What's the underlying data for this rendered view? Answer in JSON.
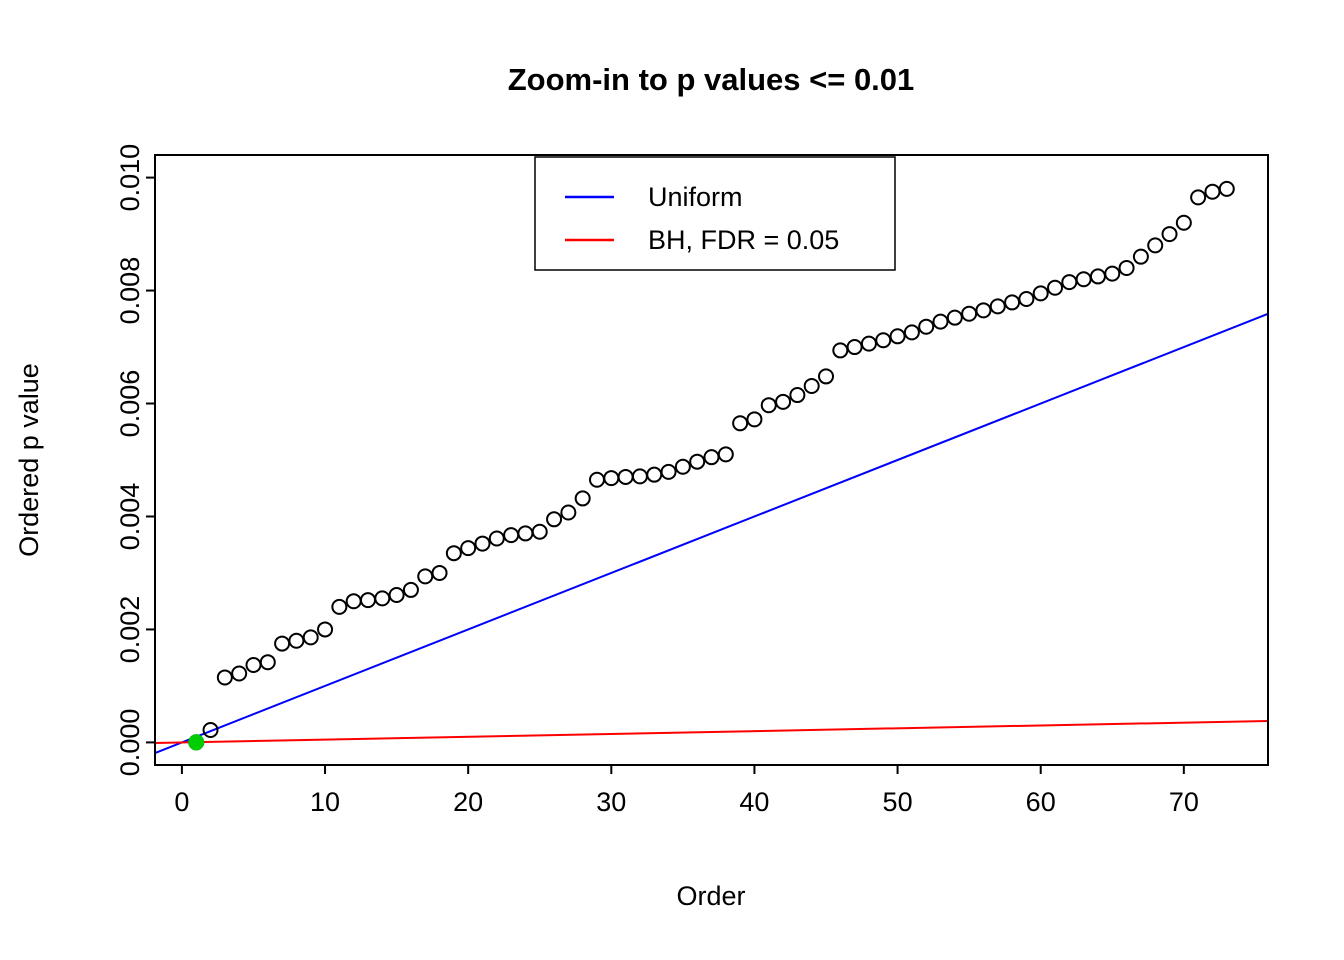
{
  "chart_data": {
    "type": "scatter",
    "title": "Zoom-in to p values <= 0.01",
    "xlabel": "Order",
    "ylabel": "Ordered p value",
    "xlim": [
      -1.88,
      75.88
    ],
    "ylim": [
      -0.0004,
      0.0104
    ],
    "grid": false,
    "x_ticks": {
      "values": [
        0,
        10,
        20,
        30,
        40,
        50,
        60,
        70
      ],
      "labels": [
        "0",
        "10",
        "20",
        "30",
        "40",
        "50",
        "60",
        "70"
      ]
    },
    "y_ticks": {
      "values": [
        0.0,
        0.002,
        0.004,
        0.006,
        0.008,
        0.01
      ],
      "labels": [
        "0.000",
        "0.002",
        "0.004",
        "0.006",
        "0.008",
        "0.010"
      ]
    },
    "points_series_name": "ordered-p-values",
    "points_marker": "open-circle",
    "points_color": "#000000",
    "points": [
      [
        1,
        2e-06
      ],
      [
        2,
        0.00022
      ],
      [
        3,
        0.00115
      ],
      [
        4,
        0.00122
      ],
      [
        5,
        0.00137
      ],
      [
        6,
        0.00142
      ],
      [
        7,
        0.00175
      ],
      [
        8,
        0.0018
      ],
      [
        9,
        0.00186
      ],
      [
        10,
        0.002
      ],
      [
        11,
        0.0024
      ],
      [
        12,
        0.0025
      ],
      [
        13,
        0.00252
      ],
      [
        14,
        0.00255
      ],
      [
        15,
        0.00261
      ],
      [
        16,
        0.0027
      ],
      [
        17,
        0.00294
      ],
      [
        18,
        0.003
      ],
      [
        19,
        0.00335
      ],
      [
        20,
        0.00344
      ],
      [
        21,
        0.00352
      ],
      [
        22,
        0.00361
      ],
      [
        23,
        0.00367
      ],
      [
        24,
        0.0037
      ],
      [
        25,
        0.00373
      ],
      [
        26,
        0.00395
      ],
      [
        27,
        0.00407
      ],
      [
        28,
        0.00432
      ],
      [
        29,
        0.00465
      ],
      [
        30,
        0.00468
      ],
      [
        31,
        0.0047
      ],
      [
        32,
        0.00471
      ],
      [
        33,
        0.00474
      ],
      [
        34,
        0.00479
      ],
      [
        35,
        0.00488
      ],
      [
        36,
        0.00497
      ],
      [
        37,
        0.00505
      ],
      [
        38,
        0.0051
      ],
      [
        39,
        0.00565
      ],
      [
        40,
        0.00572
      ],
      [
        41,
        0.00597
      ],
      [
        42,
        0.00603
      ],
      [
        43,
        0.00615
      ],
      [
        44,
        0.00631
      ],
      [
        45,
        0.00648
      ],
      [
        46,
        0.00694
      ],
      [
        47,
        0.007
      ],
      [
        48,
        0.00706
      ],
      [
        49,
        0.00712
      ],
      [
        50,
        0.00719
      ],
      [
        51,
        0.00726
      ],
      [
        52,
        0.00736
      ],
      [
        53,
        0.00745
      ],
      [
        54,
        0.00752
      ],
      [
        55,
        0.00759
      ],
      [
        56,
        0.00765
      ],
      [
        57,
        0.00772
      ],
      [
        58,
        0.00779
      ],
      [
        59,
        0.00785
      ],
      [
        60,
        0.00795
      ],
      [
        61,
        0.00805
      ],
      [
        62,
        0.00815
      ],
      [
        63,
        0.0082
      ],
      [
        64,
        0.00825
      ],
      [
        65,
        0.0083
      ],
      [
        66,
        0.0084
      ],
      [
        67,
        0.0086
      ],
      [
        68,
        0.0088
      ],
      [
        69,
        0.009
      ],
      [
        70,
        0.0092
      ],
      [
        71,
        0.00965
      ],
      [
        72,
        0.00975
      ],
      [
        73,
        0.0098
      ]
    ],
    "significant_point": {
      "order": 1,
      "p": 2e-06,
      "color": "#00CC00",
      "marker": "filled-circle"
    },
    "lines": [
      {
        "name": "Uniform",
        "color": "#0000FF",
        "slope": 0.0001,
        "intercept": 0
      },
      {
        "name": "BH, FDR = 0.05",
        "color": "#FF0000",
        "slope": 5e-06,
        "intercept": 0
      }
    ],
    "legend": {
      "position": "top-center-inside",
      "entries": [
        {
          "label": "Uniform",
          "color": "#0000FF"
        },
        {
          "label": "BH, FDR = 0.05",
          "color": "#FF0000"
        }
      ]
    }
  }
}
